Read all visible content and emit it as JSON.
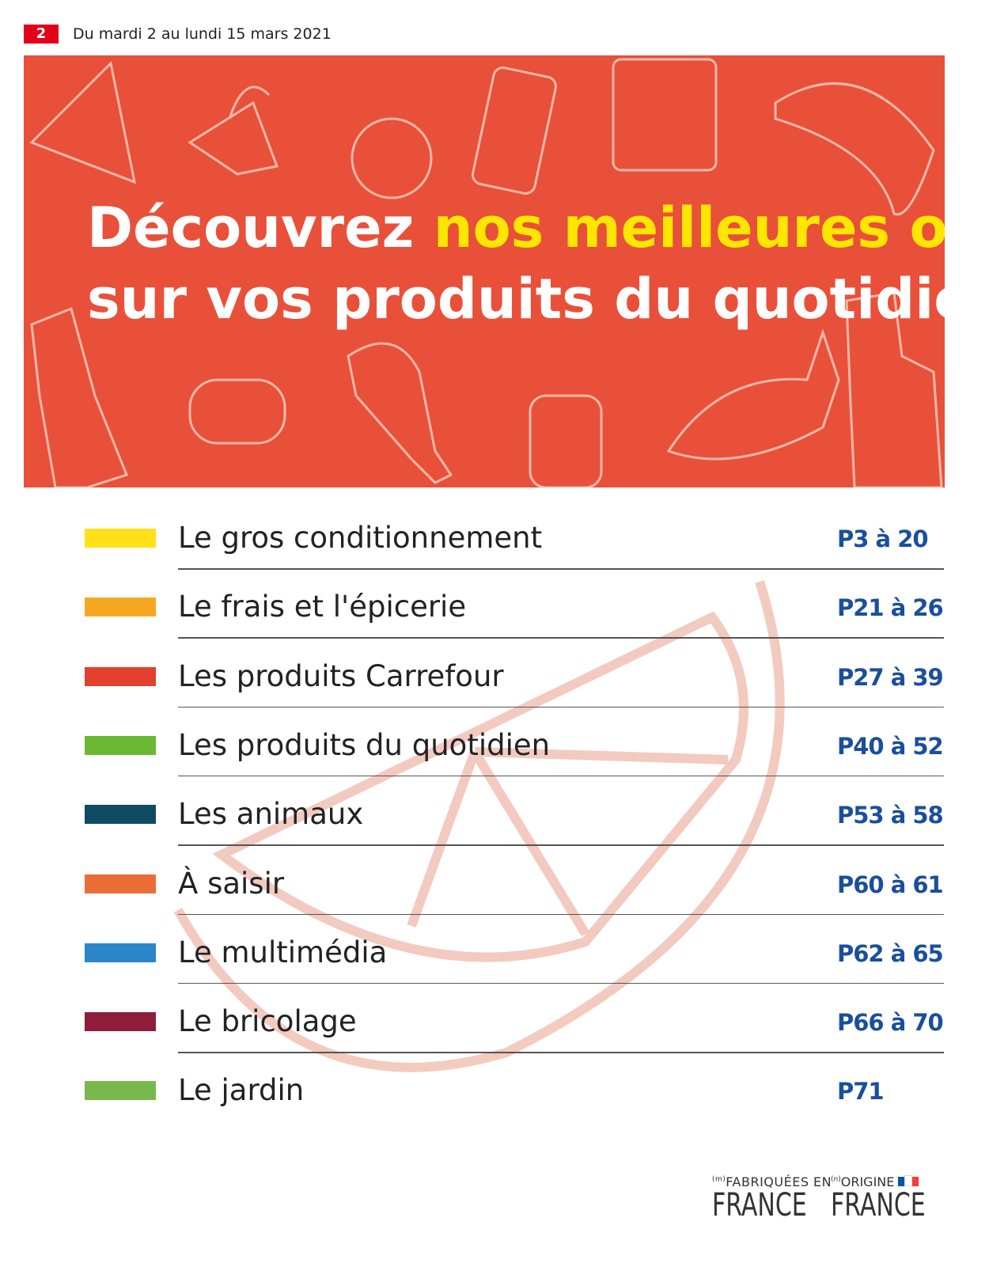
{
  "header": {
    "page_number": "2",
    "date_range": "Du mardi 2 au lundi 15 mars 2021"
  },
  "banner": {
    "headline_start": "Découvrez ",
    "headline_highlight": "nos meilleures offres",
    "headline_line2": "sur vos produits du quotidien."
  },
  "sections": [
    {
      "label": "Le gros conditionnement",
      "pages": "P3 à 20",
      "color": "#ffe11a"
    },
    {
      "label": "Le frais et l'épicerie",
      "pages": "P21 à 26",
      "color": "#f7a823"
    },
    {
      "label": "Les produits Carrefour",
      "pages": "P27 à 39",
      "color": "#e4402f"
    },
    {
      "label": "Les produits du quotidien",
      "pages": "P40 à 52",
      "color": "#6bb832"
    },
    {
      "label": "Les animaux",
      "pages": "P53 à 58",
      "color": "#0e4a62"
    },
    {
      "label": "À saisir",
      "pages": "P60 à 61",
      "color": "#ec6c35"
    },
    {
      "label": "Le multimédia",
      "pages": "P62 à 65",
      "color": "#2b86c9"
    },
    {
      "label": "Le bricolage",
      "pages": "P66 à 70",
      "color": "#8e1d3b"
    },
    {
      "label": "Le jardin",
      "pages": "P71",
      "color": "#7ab84e"
    }
  ],
  "footer": {
    "logo1_mark": "(m)",
    "logo1_top": "FABRIQUÉES EN",
    "logo1_bottom": "FRANCE",
    "logo2_mark": "(n)",
    "logo2_top": "ORIGINE",
    "logo2_bottom": "FRANCE"
  }
}
